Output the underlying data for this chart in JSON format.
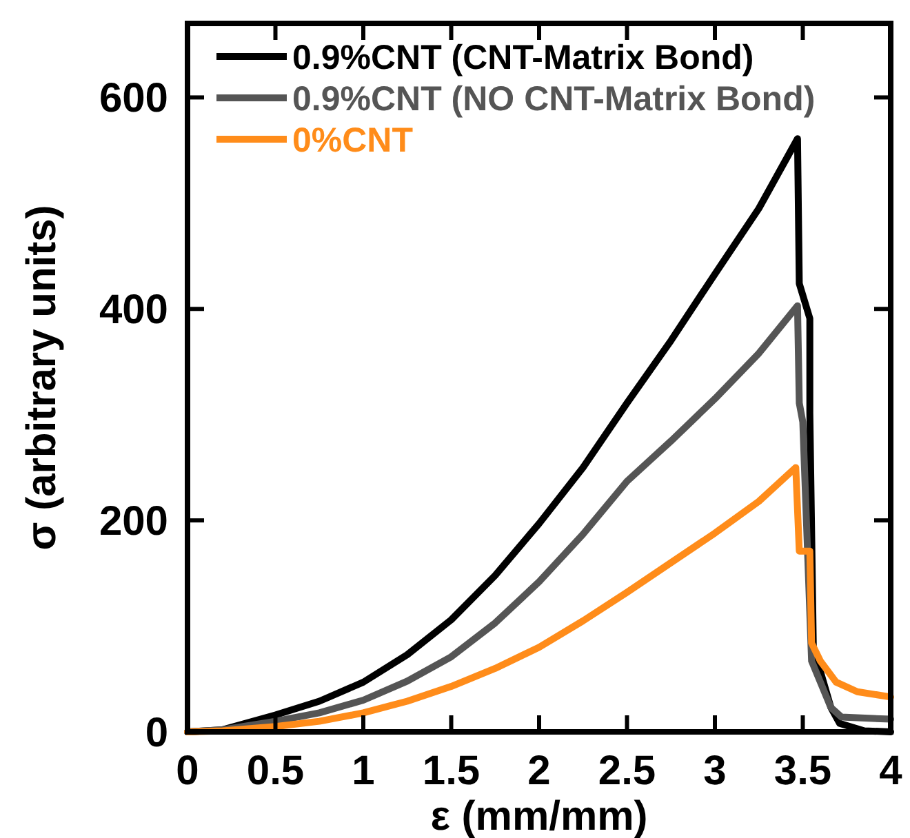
{
  "chart_data": {
    "type": "line",
    "xlabel": "ε (mm/mm)",
    "ylabel": "σ (arbitrary units)",
    "xlim": [
      0,
      4
    ],
    "ylim": [
      0,
      670
    ],
    "xticks": [
      0,
      0.5,
      1,
      1.5,
      2,
      2.5,
      3,
      3.5,
      4
    ],
    "yticks": [
      0,
      200,
      400,
      600
    ],
    "grid": false,
    "legend": "top left",
    "line_style": "solid",
    "marker": "none",
    "series": [
      {
        "name": "0.9%CNT (CNT-Matrix Bond)",
        "color": "#000000",
        "x": [
          0,
          0.2,
          0.5,
          0.75,
          1,
          1.25,
          1.5,
          1.75,
          2,
          2.25,
          2.5,
          2.75,
          3,
          3.25,
          3.47,
          3.48,
          3.54,
          3.54,
          3.56,
          3.66,
          3.71,
          3.85,
          4
        ],
        "values": [
          0,
          2,
          16,
          29,
          47,
          73,
          106,
          148,
          197,
          250,
          311,
          370,
          433,
          495,
          561,
          424,
          391,
          302,
          80,
          23,
          8,
          1,
          0
        ]
      },
      {
        "name": "0.9%CNT (NO CNT-Matrix Bond)",
        "color": "#555555",
        "x": [
          0,
          0.2,
          0.5,
          0.75,
          1,
          1.25,
          1.5,
          1.75,
          2,
          2.25,
          2.5,
          2.75,
          3,
          3.25,
          3.47,
          3.48,
          3.5,
          3.55,
          3.66,
          3.72,
          4
        ],
        "values": [
          0,
          2,
          10,
          18,
          30,
          48,
          71,
          103,
          142,
          187,
          237,
          275,
          315,
          358,
          403,
          311,
          293,
          67,
          23,
          14,
          12
        ]
      },
      {
        "name": "0%CNT",
        "color": "#ff8c1a",
        "x": [
          0,
          0.2,
          0.5,
          0.75,
          1,
          1.25,
          1.5,
          1.75,
          2,
          2.25,
          2.5,
          2.75,
          3,
          3.25,
          3.46,
          3.48,
          3.54,
          3.55,
          3.6,
          3.69,
          3.81,
          4
        ],
        "values": [
          0,
          1,
          5,
          10,
          18,
          29,
          43,
          60,
          80,
          105,
          132,
          160,
          188,
          218,
          250,
          171,
          171,
          84,
          67,
          47,
          38,
          33
        ]
      }
    ]
  }
}
